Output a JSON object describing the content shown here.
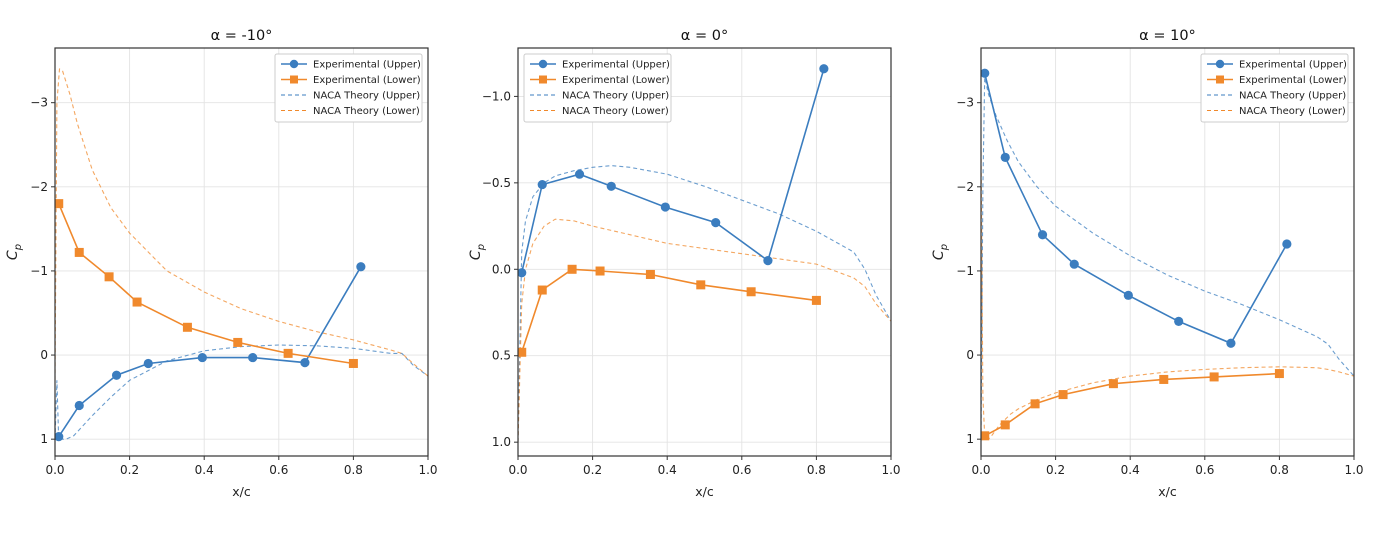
{
  "colors": {
    "upper": "#3b7dbf",
    "lower": "#f0892c"
  },
  "chart_data": [
    {
      "type": "line",
      "title": "α = -10°",
      "xlabel": "x/c",
      "ylabel": "C",
      "ylabel_sub": "p",
      "xlim": [
        0,
        1.0
      ],
      "ylim": [
        1.2,
        -3.65
      ],
      "y_inverted": true,
      "xticks": [
        "0.0",
        "0.2",
        "0.4",
        "0.6",
        "0.8",
        "1.0"
      ],
      "yticks": [
        "−3",
        "−2",
        "−1",
        "0",
        "1"
      ],
      "grid": true,
      "legend_position": "top-right",
      "series": [
        {
          "name": "Experimental (Upper)",
          "style": "solid-circle",
          "color": "upper",
          "x": [
            0.01,
            0.065,
            0.165,
            0.25,
            0.395,
            0.53,
            0.67,
            0.82
          ],
          "y": [
            0.97,
            0.6,
            0.24,
            0.1,
            0.03,
            0.03,
            0.09,
            -1.05
          ]
        },
        {
          "name": "Experimental (Lower)",
          "style": "solid-square",
          "color": "lower",
          "x": [
            0.01,
            0.065,
            0.145,
            0.22,
            0.355,
            0.49,
            0.625,
            0.8
          ],
          "y": [
            -1.8,
            -1.22,
            -0.93,
            -0.63,
            -0.33,
            -0.15,
            -0.02,
            0.1
          ]
        },
        {
          "name": "NACA Theory (Upper)",
          "style": "dashed",
          "color": "upper",
          "x": [
            0,
            0.005,
            0.01,
            0.03,
            0.05,
            0.1,
            0.15,
            0.2,
            0.3,
            0.4,
            0.5,
            0.6,
            0.7,
            0.8,
            0.9,
            0.93,
            0.96,
            1.0
          ],
          "y": [
            1.0,
            0.3,
            1.0,
            1.0,
            0.96,
            0.72,
            0.5,
            0.3,
            0.07,
            -0.05,
            -0.1,
            -0.12,
            -0.11,
            -0.08,
            -0.02,
            -0.02,
            0.12,
            0.25
          ]
        },
        {
          "name": "NACA Theory (Lower)",
          "style": "dashed",
          "color": "lower",
          "x": [
            0,
            0.005,
            0.012,
            0.02,
            0.04,
            0.06,
            0.1,
            0.15,
            0.2,
            0.3,
            0.4,
            0.5,
            0.6,
            0.7,
            0.8,
            0.9,
            0.93,
            0.96,
            1.0
          ],
          "y": [
            0.3,
            -3.0,
            -3.4,
            -3.38,
            -3.1,
            -2.75,
            -2.2,
            -1.75,
            -1.45,
            -1.0,
            -0.75,
            -0.55,
            -0.4,
            -0.28,
            -0.18,
            -0.06,
            -0.02,
            0.1,
            0.25
          ]
        }
      ]
    },
    {
      "type": "line",
      "title": "α = 0°",
      "xlabel": "x/c",
      "ylabel": "C",
      "ylabel_sub": "p",
      "xlim": [
        0,
        1.0
      ],
      "ylim": [
        1.08,
        -1.28
      ],
      "y_inverted": true,
      "xticks": [
        "0.0",
        "0.2",
        "0.4",
        "0.6",
        "0.8",
        "1.0"
      ],
      "yticks": [
        "−1.0",
        "−0.5",
        "0.0",
        "0.5",
        "1.0"
      ],
      "grid": true,
      "legend_position": "top-left",
      "series": [
        {
          "name": "Experimental (Upper)",
          "style": "solid-circle",
          "color": "upper",
          "x": [
            0.01,
            0.065,
            0.165,
            0.25,
            0.395,
            0.53,
            0.67,
            0.82
          ],
          "y": [
            0.02,
            -0.49,
            -0.55,
            -0.48,
            -0.36,
            -0.27,
            -0.05,
            -1.16
          ]
        },
        {
          "name": "Experimental (Lower)",
          "style": "solid-square",
          "color": "lower",
          "x": [
            0.01,
            0.065,
            0.145,
            0.22,
            0.355,
            0.49,
            0.625,
            0.8
          ],
          "y": [
            0.48,
            0.12,
            0.0,
            0.01,
            0.03,
            0.09,
            0.13,
            0.18
          ]
        },
        {
          "name": "NACA Theory (Upper)",
          "style": "dashed",
          "color": "upper",
          "x": [
            0,
            0.01,
            0.02,
            0.04,
            0.07,
            0.1,
            0.15,
            0.2,
            0.25,
            0.3,
            0.4,
            0.5,
            0.6,
            0.7,
            0.8,
            0.9,
            0.93,
            0.96,
            1.0
          ],
          "y": [
            1.0,
            -0.1,
            -0.28,
            -0.42,
            -0.5,
            -0.54,
            -0.57,
            -0.59,
            -0.6,
            -0.59,
            -0.55,
            -0.48,
            -0.4,
            -0.32,
            -0.22,
            -0.1,
            0.0,
            0.15,
            0.3
          ]
        },
        {
          "name": "NACA Theory (Lower)",
          "style": "dashed",
          "color": "lower",
          "x": [
            0,
            0.01,
            0.02,
            0.04,
            0.07,
            0.1,
            0.15,
            0.2,
            0.3,
            0.4,
            0.5,
            0.6,
            0.7,
            0.8,
            0.9,
            0.93,
            0.96,
            1.0
          ],
          "y": [
            1.0,
            0.2,
            0.0,
            -0.15,
            -0.25,
            -0.29,
            -0.28,
            -0.25,
            -0.2,
            -0.15,
            -0.12,
            -0.09,
            -0.06,
            -0.03,
            0.05,
            0.1,
            0.2,
            0.3
          ]
        }
      ]
    },
    {
      "type": "line",
      "title": "α = 10°",
      "xlabel": "x/c",
      "ylabel": "C",
      "ylabel_sub": "p",
      "xlim": [
        0,
        1.0
      ],
      "ylim": [
        1.2,
        -3.65
      ],
      "y_inverted": true,
      "xticks": [
        "0.0",
        "0.2",
        "0.4",
        "0.6",
        "0.8",
        "1.0"
      ],
      "yticks": [
        "−3",
        "−2",
        "−1",
        "0",
        "1"
      ],
      "grid": true,
      "legend_position": "top-right",
      "series": [
        {
          "name": "Experimental (Upper)",
          "style": "solid-circle",
          "color": "upper",
          "x": [
            0.01,
            0.065,
            0.165,
            0.25,
            0.395,
            0.53,
            0.67,
            0.82
          ],
          "y": [
            -3.35,
            -2.35,
            -1.43,
            -1.08,
            -0.71,
            -0.4,
            -0.14,
            -1.32
          ]
        },
        {
          "name": "Experimental (Lower)",
          "style": "solid-square",
          "color": "lower",
          "x": [
            0.01,
            0.065,
            0.145,
            0.22,
            0.355,
            0.49,
            0.625,
            0.8
          ],
          "y": [
            0.96,
            0.83,
            0.58,
            0.47,
            0.34,
            0.29,
            0.26,
            0.22
          ]
        },
        {
          "name": "NACA Theory (Upper)",
          "style": "dashed",
          "color": "upper",
          "x": [
            0,
            0.005,
            0.01,
            0.02,
            0.04,
            0.07,
            0.1,
            0.15,
            0.2,
            0.3,
            0.4,
            0.5,
            0.6,
            0.7,
            0.8,
            0.9,
            0.93,
            0.96,
            1.0
          ],
          "y": [
            1.0,
            -2.0,
            -3.3,
            -3.1,
            -2.85,
            -2.55,
            -2.3,
            -2.0,
            -1.77,
            -1.45,
            -1.18,
            -0.95,
            -0.76,
            -0.6,
            -0.42,
            -0.22,
            -0.13,
            0.05,
            0.25
          ]
        },
        {
          "name": "NACA Theory (Lower)",
          "style": "dashed",
          "color": "lower",
          "x": [
            0,
            0.005,
            0.01,
            0.02,
            0.03,
            0.05,
            0.08,
            0.1,
            0.15,
            0.2,
            0.3,
            0.4,
            0.5,
            0.6,
            0.7,
            0.8,
            0.9,
            0.93,
            0.96,
            1.0
          ],
          "y": [
            -2.5,
            0.5,
            0.96,
            1.0,
            0.95,
            0.83,
            0.7,
            0.64,
            0.53,
            0.45,
            0.33,
            0.25,
            0.2,
            0.17,
            0.15,
            0.14,
            0.15,
            0.17,
            0.2,
            0.25
          ]
        }
      ]
    }
  ]
}
